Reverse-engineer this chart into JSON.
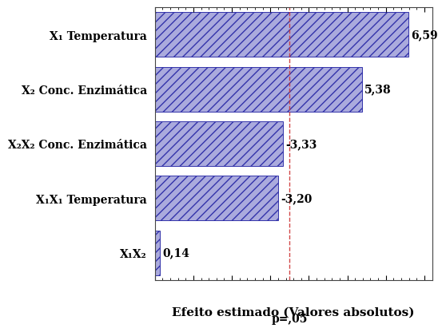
{
  "categories": [
    "X₁X₂",
    "X₁X₁ Temperatura",
    "X₂X₂ Conc. Enzimática",
    "X₂ Conc. Enzimática",
    "X₁ Temperatura"
  ],
  "values": [
    0.14,
    3.2,
    3.33,
    5.38,
    6.59
  ],
  "value_labels": [
    "0,14",
    "-3,20",
    "-3,33",
    "5,38",
    "6,59"
  ],
  "bar_color": "#aaaadd",
  "hatch_pattern": "///",
  "p_value_line": 3.5,
  "p_label": "p=,05",
  "xlabel": "Efeito estimado (Valores absolutos)",
  "xlim": [
    0,
    7.2
  ],
  "background_color": "#ffffff",
  "bar_edge_color": "#3333aa",
  "line_color": "#cc3333",
  "label_fontsize": 10,
  "value_fontsize": 10,
  "xlabel_fontsize": 11
}
